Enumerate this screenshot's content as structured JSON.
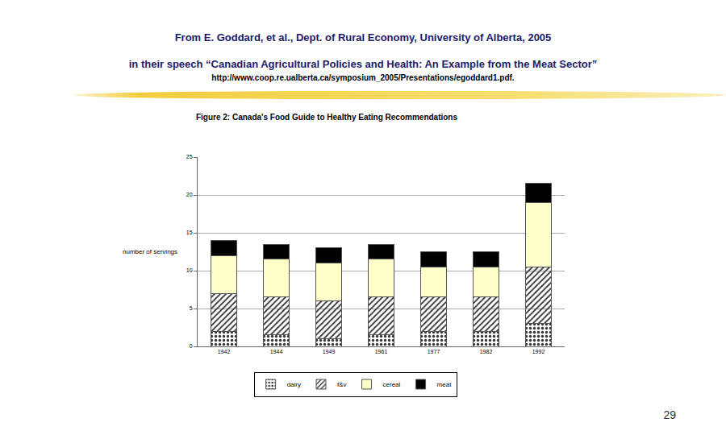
{
  "header": {
    "lines": [
      "From E. Goddard, et al., Dept. of Rural Economy, University of Alberta, 2005",
      "in their speech “Canadian Agricultural Policies and Health: An Example from the Meat Sector”",
      "http://www.coop.re.ualberta.ca/symposium_2005/Presentations/egoddard1.pdf."
    ]
  },
  "page_number": "29",
  "chart_data": {
    "type": "bar",
    "title": "Figure 2: Canada's Food Guide to Healthy Eating Recommendations",
    "y_label": "number of servings",
    "categories": [
      "1942",
      "1944",
      "1949",
      "1961",
      "1977",
      "1982",
      "1992"
    ],
    "series": [
      {
        "name": "dairy",
        "color": "#d4d4d4",
        "values": [
          2,
          1.5,
          1,
          1.5,
          2,
          2,
          3
        ]
      },
      {
        "name": "f&v",
        "color": "#ffffff",
        "values": [
          5,
          5,
          5,
          5,
          4.5,
          4.5,
          7.5
        ]
      },
      {
        "name": "cereal",
        "color": "#ffffcc",
        "values": [
          5,
          5,
          5,
          5,
          4,
          4,
          8.5
        ]
      },
      {
        "name": "meat",
        "color": "#000000",
        "values": [
          2,
          2,
          2,
          2,
          2,
          2,
          2.5
        ]
      }
    ],
    "stacked": true,
    "ylim": [
      0,
      25
    ],
    "yticks": [
      0,
      5,
      10,
      15,
      20,
      25
    ],
    "grid": true,
    "legend": "bottom"
  }
}
